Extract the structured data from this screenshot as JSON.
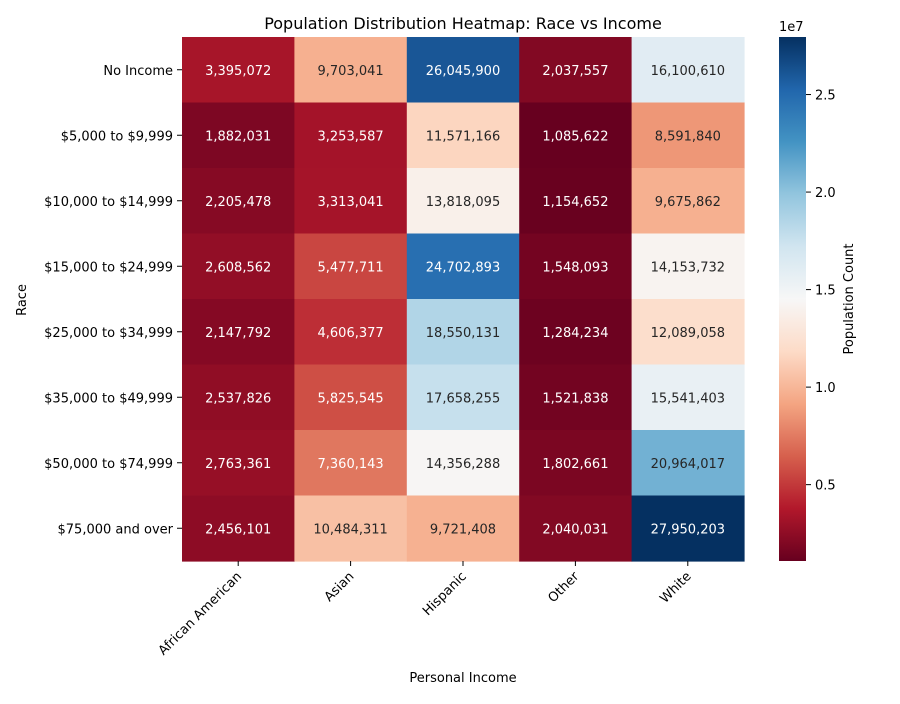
{
  "chart_data": {
    "type": "heatmap",
    "title": "Population Distribution Heatmap: Race vs Income",
    "xlabel": "Personal Income",
    "ylabel": "Race",
    "columns": [
      "African American",
      "Asian",
      "Hispanic",
      "Other",
      "White"
    ],
    "rows": [
      "No Income",
      "$5,000 to $9,999",
      "$10,000 to $14,999",
      "$15,000 to $24,999",
      "$25,000 to $34,999",
      "$35,000 to $49,999",
      "$50,000 to $74,999",
      "$75,000 and over"
    ],
    "values": [
      [
        3395072,
        9703041,
        26045900,
        2037557,
        16100610
      ],
      [
        1882031,
        3253587,
        11571166,
        1085622,
        8591840
      ],
      [
        2205478,
        3313041,
        13818095,
        1154652,
        9675862
      ],
      [
        2608562,
        5477711,
        24702893,
        1548093,
        14153732
      ],
      [
        2147792,
        4606377,
        18550131,
        1284234,
        12089058
      ],
      [
        2537826,
        5825545,
        17658255,
        1521838,
        15541403
      ],
      [
        2763361,
        7360143,
        14356288,
        1802661,
        20964017
      ],
      [
        2456101,
        10484311,
        9721408,
        2040031,
        27950203
      ]
    ],
    "value_labels": [
      [
        "3,395,072",
        "9,703,041",
        "26,045,900",
        "2,037,557",
        "16,100,610"
      ],
      [
        "1,882,031",
        "3,253,587",
        "11,571,166",
        "1,085,622",
        "8,591,840"
      ],
      [
        "2,205,478",
        "3,313,041",
        "13,818,095",
        "1,154,652",
        "9,675,862"
      ],
      [
        "2,608,562",
        "5,477,711",
        "24,702,893",
        "1,548,093",
        "14,153,732"
      ],
      [
        "2,147,792",
        "4,606,377",
        "18,550,131",
        "1,284,234",
        "12,089,058"
      ],
      [
        "2,537,826",
        "5,825,545",
        "17,658,255",
        "1,521,838",
        "15,541,403"
      ],
      [
        "2,763,361",
        "7,360,143",
        "14,356,288",
        "1,802,661",
        "20,964,017"
      ],
      [
        "2,456,101",
        "10,484,311",
        "9,721,408",
        "2,040,031",
        "27,950,203"
      ]
    ],
    "colormap": "RdBu",
    "colorbar": {
      "label": "Population Count",
      "exponent_label": "1e7",
      "ticks": [
        0.5,
        1.0,
        1.5,
        2.0,
        2.5
      ],
      "tick_labels": [
        "0.5",
        "1.0",
        "1.5",
        "2.0",
        "2.5"
      ],
      "range": [
        1085622,
        27950203
      ]
    },
    "colors": {
      "low": "#67001f",
      "mid": "#f7f7f7",
      "high": "#053061"
    }
  }
}
